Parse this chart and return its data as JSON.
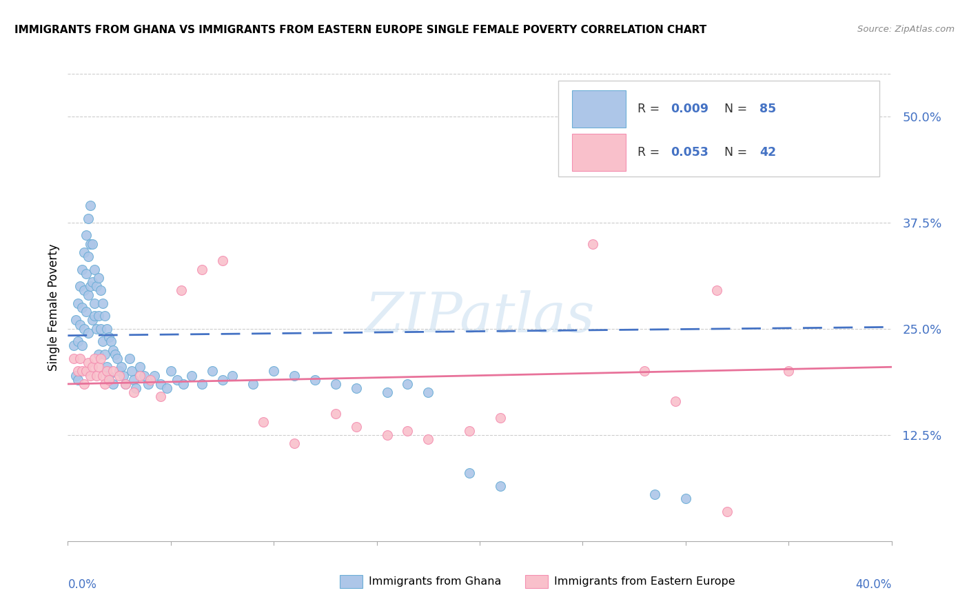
{
  "title": "IMMIGRANTS FROM GHANA VS IMMIGRANTS FROM EASTERN EUROPE SINGLE FEMALE POVERTY CORRELATION CHART",
  "source": "Source: ZipAtlas.com",
  "ylabel": "Single Female Poverty",
  "ghana_color": "#adc6e8",
  "ghana_edge_color": "#6baed6",
  "eastern_color": "#f9c0cb",
  "eastern_edge_color": "#f48fb1",
  "ghana_line_color": "#4472c4",
  "eastern_line_color": "#e8729a",
  "xlim": [
    0.0,
    0.4
  ],
  "ylim": [
    0.0,
    0.55
  ],
  "watermark": "ZIPatlas",
  "ghana_x": [
    0.003,
    0.004,
    0.004,
    0.005,
    0.005,
    0.005,
    0.006,
    0.006,
    0.007,
    0.007,
    0.007,
    0.008,
    0.008,
    0.008,
    0.009,
    0.009,
    0.009,
    0.01,
    0.01,
    0.01,
    0.01,
    0.011,
    0.011,
    0.011,
    0.012,
    0.012,
    0.012,
    0.013,
    0.013,
    0.013,
    0.014,
    0.014,
    0.015,
    0.015,
    0.015,
    0.016,
    0.016,
    0.017,
    0.017,
    0.018,
    0.018,
    0.019,
    0.019,
    0.02,
    0.02,
    0.021,
    0.022,
    0.022,
    0.023,
    0.024,
    0.025,
    0.026,
    0.027,
    0.028,
    0.03,
    0.031,
    0.032,
    0.033,
    0.035,
    0.037,
    0.039,
    0.042,
    0.045,
    0.048,
    0.05,
    0.053,
    0.056,
    0.06,
    0.065,
    0.07,
    0.075,
    0.08,
    0.09,
    0.1,
    0.11,
    0.12,
    0.13,
    0.14,
    0.155,
    0.165,
    0.175,
    0.195,
    0.21,
    0.285,
    0.3
  ],
  "ghana_y": [
    0.23,
    0.26,
    0.195,
    0.28,
    0.235,
    0.19,
    0.3,
    0.255,
    0.32,
    0.275,
    0.23,
    0.34,
    0.295,
    0.25,
    0.36,
    0.315,
    0.27,
    0.38,
    0.335,
    0.29,
    0.245,
    0.395,
    0.35,
    0.3,
    0.26,
    0.35,
    0.305,
    0.28,
    0.32,
    0.265,
    0.3,
    0.25,
    0.31,
    0.265,
    0.22,
    0.295,
    0.25,
    0.28,
    0.235,
    0.265,
    0.22,
    0.25,
    0.205,
    0.24,
    0.195,
    0.235,
    0.225,
    0.185,
    0.22,
    0.215,
    0.2,
    0.205,
    0.195,
    0.185,
    0.215,
    0.2,
    0.19,
    0.18,
    0.205,
    0.195,
    0.185,
    0.195,
    0.185,
    0.18,
    0.2,
    0.19,
    0.185,
    0.195,
    0.185,
    0.2,
    0.19,
    0.195,
    0.185,
    0.2,
    0.195,
    0.19,
    0.185,
    0.18,
    0.175,
    0.185,
    0.175,
    0.08,
    0.065,
    0.055,
    0.05
  ],
  "eastern_x": [
    0.003,
    0.005,
    0.006,
    0.007,
    0.008,
    0.009,
    0.01,
    0.011,
    0.012,
    0.013,
    0.014,
    0.015,
    0.016,
    0.017,
    0.018,
    0.019,
    0.02,
    0.022,
    0.025,
    0.028,
    0.032,
    0.035,
    0.04,
    0.045,
    0.055,
    0.065,
    0.075,
    0.095,
    0.11,
    0.13,
    0.14,
    0.155,
    0.165,
    0.175,
    0.195,
    0.21,
    0.255,
    0.28,
    0.295,
    0.315,
    0.32,
    0.35
  ],
  "eastern_y": [
    0.215,
    0.2,
    0.215,
    0.2,
    0.185,
    0.2,
    0.21,
    0.195,
    0.205,
    0.215,
    0.195,
    0.205,
    0.215,
    0.195,
    0.185,
    0.2,
    0.19,
    0.2,
    0.195,
    0.185,
    0.175,
    0.195,
    0.19,
    0.17,
    0.295,
    0.32,
    0.33,
    0.14,
    0.115,
    0.15,
    0.135,
    0.125,
    0.13,
    0.12,
    0.13,
    0.145,
    0.35,
    0.2,
    0.165,
    0.295,
    0.035,
    0.2
  ]
}
